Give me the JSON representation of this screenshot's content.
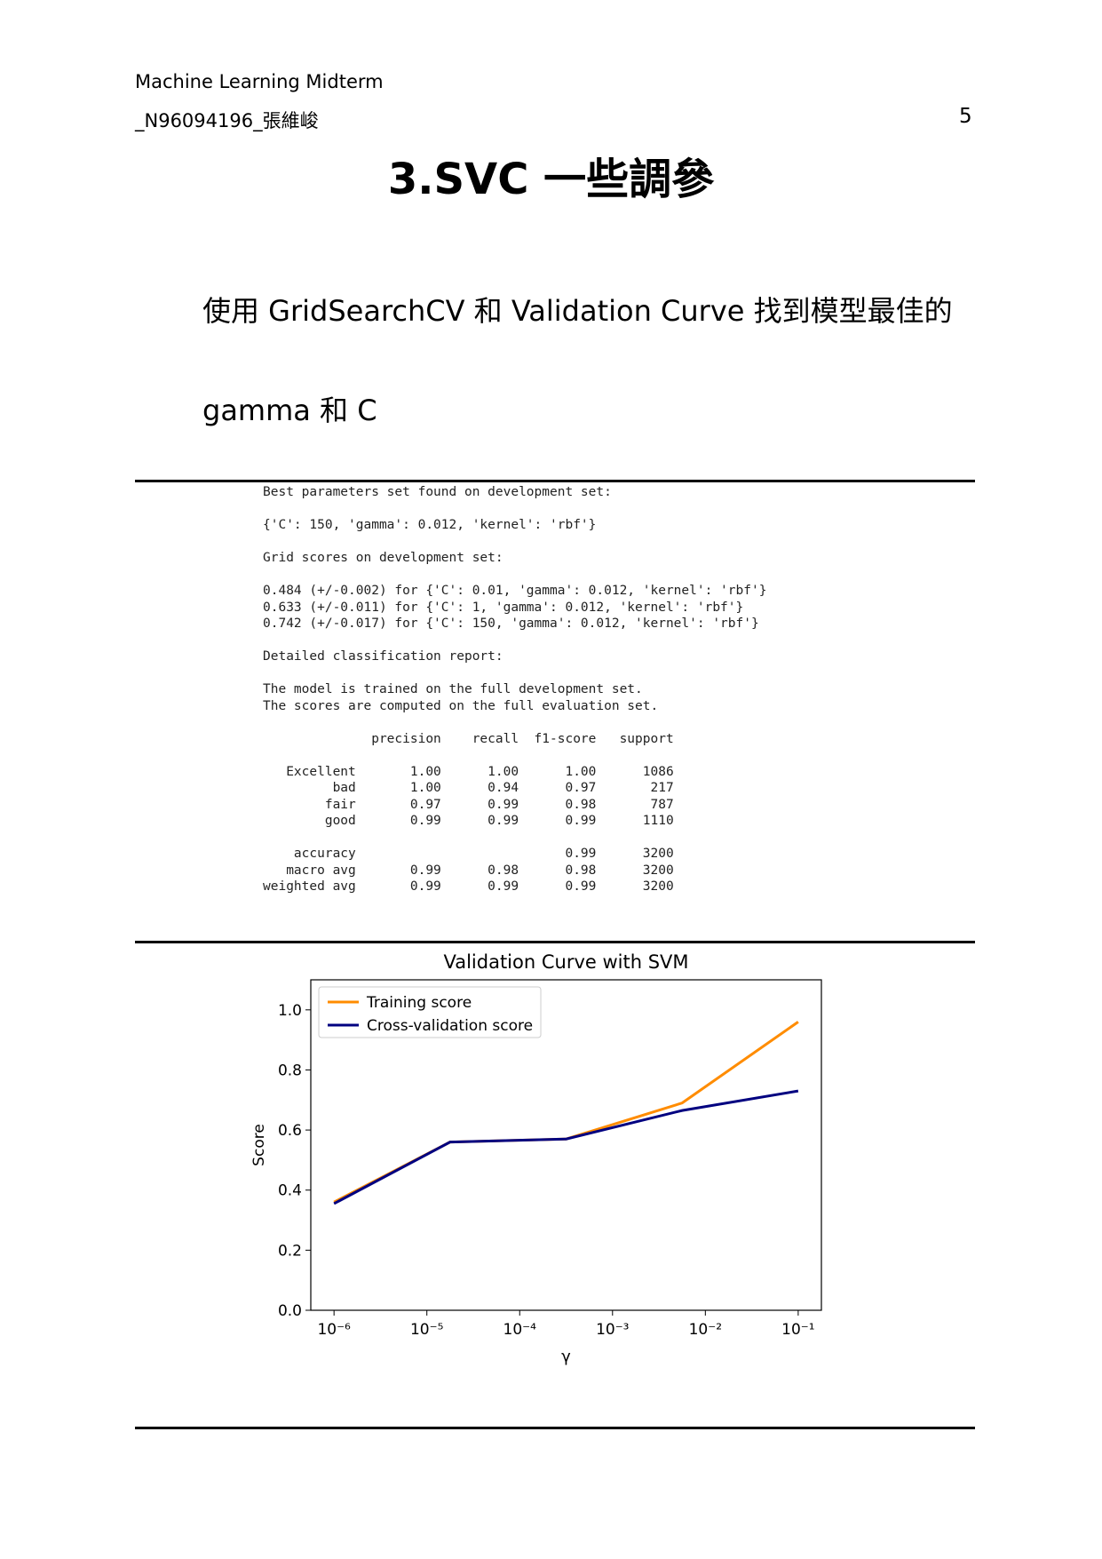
{
  "header": {
    "course": "Machine Learning Midterm",
    "student": "_N96094196_張維峻",
    "page_number": "5"
  },
  "title": "3.SVC 一些調參",
  "paragraph": [
    "使用 GridSearchCV 和 Validation Curve 找到模型最佳的",
    "gamma 和 C"
  ],
  "code_block": [
    [
      "Best parameters set found on development set:"
    ],
    [
      "{'C': 150, 'gamma': 0.012, 'kernel': 'rbf'}"
    ],
    [
      "Grid scores on development set:"
    ],
    [
      "0.484 (+/-0.002) for {'C': 0.01, 'gamma': 0.012, 'kernel': 'rbf'}",
      "0.633 (+/-0.011) for {'C': 1, 'gamma': 0.012, 'kernel': 'rbf'}",
      "0.742 (+/-0.017) for {'C': 150, 'gamma': 0.012, 'kernel': 'rbf'}"
    ],
    [
      "Detailed classification report:"
    ],
    [
      "The model is trained on the full development set.",
      "The scores are computed on the full evaluation set."
    ],
    [
      "              precision    recall  f1-score   support"
    ],
    [
      "   Excellent       1.00      1.00      1.00      1086",
      "         bad       1.00      0.94      0.97       217",
      "        fair       0.97      0.99      0.98       787",
      "        good       0.99      0.99      0.99      1110"
    ],
    [
      "    accuracy                           0.99      3200",
      "   macro avg       0.99      0.98      0.98      3200",
      "weighted avg       0.99      0.99      0.99      3200"
    ]
  ],
  "chart_data": {
    "type": "line",
    "title": "Validation Curve with SVM",
    "x_label": "γ",
    "y_label": "Score",
    "x": [
      1e-06,
      1.778e-05,
      0.0003162,
      0.005623,
      0.1
    ],
    "x_scale": "log",
    "series": [
      {
        "name": "Training score",
        "color": "#ff8c00",
        "values": [
          0.36,
          0.56,
          0.57,
          0.69,
          0.96
        ]
      },
      {
        "name": "Cross-validation score",
        "color": "#000080",
        "values": [
          0.355,
          0.56,
          0.57,
          0.665,
          0.73
        ]
      }
    ],
    "xlim": [
      5.62e-07,
      0.1778
    ],
    "ylim": [
      0,
      1.1
    ],
    "xticks": [
      {
        "value": 1e-06,
        "label": "10⁻⁶"
      },
      {
        "value": 1e-05,
        "label": "10⁻⁵"
      },
      {
        "value": 0.0001,
        "label": "10⁻⁴"
      },
      {
        "value": 0.001,
        "label": "10⁻³"
      },
      {
        "value": 0.01,
        "label": "10⁻²"
      },
      {
        "value": 0.1,
        "label": "10⁻¹"
      }
    ],
    "yticks": [
      {
        "value": 0,
        "label": "0.0"
      },
      0.2,
      0.4,
      0.6,
      0.8,
      {
        "value": 1,
        "label": "1.0"
      }
    ],
    "legend": "upper left",
    "grid": false
  }
}
